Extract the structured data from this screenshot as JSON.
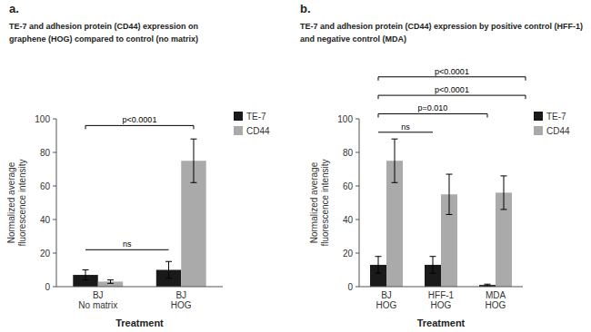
{
  "chart_data": [
    {
      "type": "bar",
      "panel_label": "a.",
      "title": "TE-7 and adhesion protein (CD44) expression on",
      "subtitle": "graphene (HOG) compared to control (no matrix)",
      "x_label": "Treatment",
      "y_label": "Normalized average\nfluorescence intensity",
      "categories": [
        "BJ\nNo matrix",
        "BJ\nHOG"
      ],
      "series": [
        {
          "name": "TE-7",
          "color": "#1a1a1a",
          "values": [
            7,
            10
          ],
          "errors": [
            3,
            5
          ]
        },
        {
          "name": "CD44",
          "color": "#aaaaaa",
          "values": [
            3,
            75
          ],
          "errors": [
            1,
            13
          ]
        }
      ],
      "ylim": [
        0,
        100
      ],
      "yticks": [
        0,
        20,
        40,
        60,
        80,
        100
      ],
      "grid": false,
      "legend": "right",
      "annotations": [
        {
          "text": "ns",
          "kind": "line",
          "x1": -0.15,
          "x2": 0.85,
          "y": 22
        },
        {
          "text": "p<0.0001",
          "kind": "bracket",
          "x1": -0.15,
          "x2": 1.15,
          "y": 96
        }
      ]
    },
    {
      "type": "bar",
      "panel_label": "b.",
      "title": "TE-7 and adhesion protein (CD44) expression by positive control (HFF-1)",
      "subtitle": "and negative control (MDA)",
      "x_label": "Treatment",
      "y_label": "Normalized average\nfluorescence intensity",
      "categories": [
        "BJ\nHOG",
        "HFF-1\nHOG",
        "MDA\nHOG"
      ],
      "series": [
        {
          "name": "TE-7",
          "color": "#1a1a1a",
          "values": [
            13,
            13,
            1
          ],
          "errors": [
            5,
            5,
            0.5
          ]
        },
        {
          "name": "CD44",
          "color": "#aaaaaa",
          "values": [
            75,
            55,
            56
          ],
          "errors": [
            13,
            12,
            10
          ]
        }
      ],
      "ylim": [
        0,
        100
      ],
      "yticks": [
        0,
        20,
        40,
        60,
        80,
        100
      ],
      "grid": false,
      "legend": "right",
      "annotations": [
        {
          "text": "ns",
          "kind": "line",
          "x1": -0.15,
          "x2": 0.85,
          "y": 92
        },
        {
          "text": "p=0.010",
          "kind": "bracket",
          "x1": -0.15,
          "x2": 1.85,
          "y": 103
        },
        {
          "text": "p<0.0001",
          "kind": "bracket",
          "x1": -0.15,
          "x2": 2.55,
          "y": 114
        },
        {
          "text": "p<0.0001",
          "kind": "bracket",
          "x1": -0.15,
          "x2": 2.55,
          "y": 125
        }
      ]
    }
  ]
}
